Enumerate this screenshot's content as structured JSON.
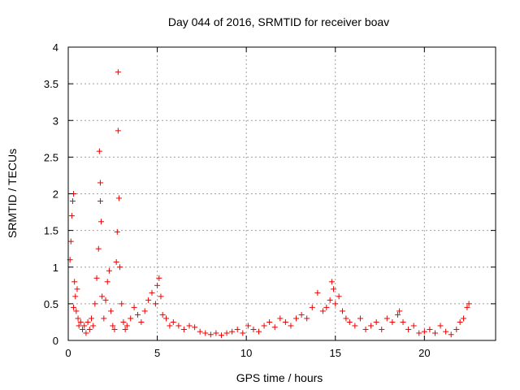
{
  "chart_data": {
    "type": "scatter",
    "title": "Day 044 of 2016, SRMTID for receiver boav",
    "xlabel": "GPS time / hours",
    "ylabel": "SRMTID / TECUs",
    "xlim": [
      0,
      24
    ],
    "ylim": [
      0,
      4
    ],
    "xticks": [
      0,
      5,
      10,
      15,
      20
    ],
    "xtick_labels": [
      "0",
      "5",
      "10",
      "15",
      "20"
    ],
    "yticks": [
      0,
      0.5,
      1,
      1.5,
      2,
      2.5,
      3,
      3.5,
      4
    ],
    "ytick_labels": [
      "0",
      "0.5",
      "1",
      "1.5",
      "2",
      "2.5",
      "3",
      "3.5",
      "4"
    ],
    "grid": true,
    "marker": "+",
    "color": "#ee0000",
    "series": [
      {
        "name": "SRMTID",
        "x": [
          0.1,
          0.15,
          0.2,
          0.25,
          0.3,
          0.3,
          0.35,
          0.4,
          0.45,
          0.5,
          0.55,
          0.6,
          0.7,
          0.8,
          0.9,
          1.0,
          1.1,
          1.2,
          1.3,
          1.4,
          1.5,
          1.6,
          1.7,
          1.75,
          1.8,
          1.8,
          1.85,
          1.9,
          2.0,
          2.1,
          2.2,
          2.3,
          2.4,
          2.5,
          2.6,
          2.7,
          2.75,
          2.8,
          2.8,
          2.85,
          2.9,
          3.0,
          3.1,
          3.2,
          3.3,
          3.5,
          3.7,
          3.9,
          4.1,
          4.3,
          4.5,
          4.7,
          4.9,
          5.0,
          5.1,
          5.2,
          5.3,
          5.5,
          5.7,
          5.9,
          6.2,
          6.5,
          6.8,
          7.1,
          7.4,
          7.7,
          8.0,
          8.3,
          8.6,
          8.9,
          9.2,
          9.5,
          9.8,
          10.1,
          10.4,
          10.7,
          11.0,
          11.3,
          11.6,
          11.9,
          12.2,
          12.5,
          12.8,
          13.1,
          13.4,
          13.7,
          14.0,
          14.3,
          14.5,
          14.7,
          14.8,
          14.9,
          15.0,
          15.2,
          15.4,
          15.6,
          15.8,
          16.1,
          16.4,
          16.7,
          17.0,
          17.3,
          17.6,
          17.9,
          18.2,
          18.5,
          18.6,
          18.8,
          19.1,
          19.4,
          19.7,
          20.0,
          20.3,
          20.6,
          20.9,
          21.2,
          21.5,
          21.8,
          22.0,
          22.2,
          22.4,
          22.5
        ],
        "y": [
          1.1,
          1.35,
          1.7,
          1.9,
          2.0,
          0.45,
          0.8,
          0.6,
          0.4,
          0.7,
          0.3,
          0.2,
          0.25,
          0.15,
          0.2,
          0.1,
          0.25,
          0.15,
          0.3,
          0.2,
          0.5,
          0.85,
          1.25,
          2.58,
          2.15,
          1.9,
          1.62,
          0.6,
          0.3,
          0.55,
          0.8,
          0.95,
          0.4,
          0.2,
          0.15,
          1.07,
          1.48,
          3.66,
          2.86,
          1.94,
          1.0,
          0.5,
          0.25,
          0.15,
          0.2,
          0.3,
          0.45,
          0.35,
          0.25,
          0.4,
          0.55,
          0.65,
          0.5,
          0.75,
          0.85,
          0.6,
          0.35,
          0.3,
          0.2,
          0.25,
          0.2,
          0.15,
          0.2,
          0.18,
          0.12,
          0.1,
          0.08,
          0.1,
          0.07,
          0.1,
          0.12,
          0.15,
          0.1,
          0.2,
          0.15,
          0.12,
          0.2,
          0.25,
          0.18,
          0.3,
          0.25,
          0.2,
          0.3,
          0.35,
          0.3,
          0.45,
          0.65,
          0.4,
          0.45,
          0.55,
          0.8,
          0.7,
          0.5,
          0.6,
          0.4,
          0.3,
          0.25,
          0.2,
          0.3,
          0.15,
          0.2,
          0.25,
          0.15,
          0.3,
          0.25,
          0.35,
          0.4,
          0.25,
          0.15,
          0.2,
          0.1,
          0.12,
          0.15,
          0.1,
          0.2,
          0.12,
          0.08,
          0.15,
          0.25,
          0.3,
          0.45,
          0.5
        ]
      }
    ]
  }
}
